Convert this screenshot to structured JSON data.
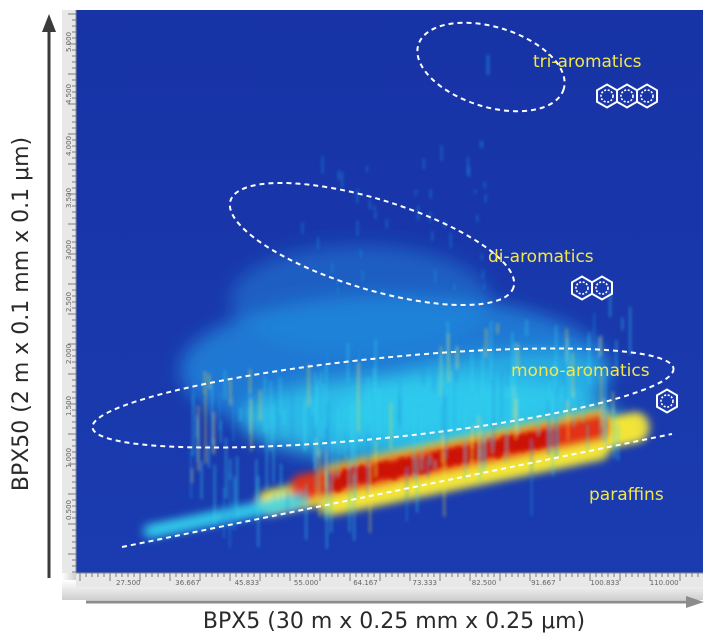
{
  "chart_data": {
    "type": "heatmap",
    "xlabel": "BPX5  (30 m x 0.25 mm x 0.25 μm)",
    "ylabel": "BPX50  (2 m x 0.1 mm x 0.1 μm)",
    "x_tick_labels": [
      "27.500",
      "36.667",
      "45.833",
      "55.000",
      "64.167",
      "73.333",
      "82.500",
      "91.667",
      "100.833",
      "110.000"
    ],
    "y_tick_labels": [
      "0.500",
      "1.000",
      "1.500",
      "2.000",
      "2.500",
      "3.000",
      "3.500",
      "4.000",
      "4.500",
      "5.000"
    ],
    "grid": false,
    "colormap": [
      "#1531a8",
      "#1f8ee0",
      "#33d6f0",
      "#f2e53a",
      "#e23218",
      "#c81008"
    ],
    "annotations": [
      {
        "label": "tri-aromatics",
        "rings": 3,
        "region": "top-right"
      },
      {
        "label": "di-aromatics",
        "rings": 2,
        "region": "upper-middle"
      },
      {
        "label": "mono-aromatics",
        "rings": 1,
        "region": "middle"
      },
      {
        "label": "paraffins",
        "rings": 0,
        "region": "bottom"
      }
    ],
    "annotation_color": "#f4e64a",
    "trend_line": "paraffins (dashed)"
  }
}
